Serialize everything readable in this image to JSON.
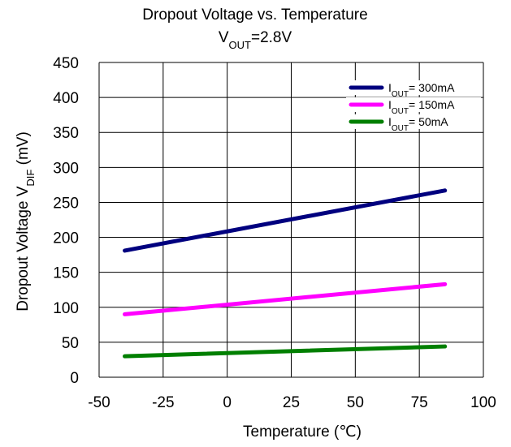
{
  "chart_data": {
    "type": "line",
    "title": "Dropout Voltage vs. Temperature",
    "subtitle": {
      "main": "V",
      "sub": "OUT",
      "rest": "=2.8V"
    },
    "xlabel": "Temperature (℃)",
    "ylabel": {
      "main": "Dropout Voltage V",
      "sub": "DIF",
      "rest": " (mV)"
    },
    "xlim": [
      -50,
      100
    ],
    "ylim": [
      0,
      450
    ],
    "xticks": [
      -50,
      -25,
      0,
      25,
      50,
      75,
      100
    ],
    "xtick_labels": [
      "-50",
      "-25",
      "0",
      "25",
      "50",
      "75",
      "100"
    ],
    "yticks": [
      0,
      50,
      100,
      150,
      200,
      250,
      300,
      350,
      400,
      450
    ],
    "ytick_labels": [
      "0",
      "50",
      "100",
      "150",
      "200",
      "250",
      "300",
      "350",
      "400",
      "450"
    ],
    "grid": true,
    "legend_position": "top-right",
    "series": [
      {
        "name": "IOUT=300mA",
        "legend": {
          "main": "I",
          "sub": "OUT",
          "rest": "= 300mA"
        },
        "color": "#00007f",
        "x": [
          -40,
          85
        ],
        "y": [
          181,
          267
        ]
      },
      {
        "name": "IOUT=150mA",
        "legend": {
          "main": "I",
          "sub": "OUT",
          "rest": "= 150mA"
        },
        "color": "#ff00ff",
        "x": [
          -40,
          85
        ],
        "y": [
          90,
          133
        ]
      },
      {
        "name": "IOUT=50mA",
        "legend": {
          "main": "I",
          "sub": "OUT",
          "rest": "= 50mA"
        },
        "color": "#007f00",
        "x": [
          -40,
          85
        ],
        "y": [
          30,
          44
        ]
      }
    ]
  }
}
